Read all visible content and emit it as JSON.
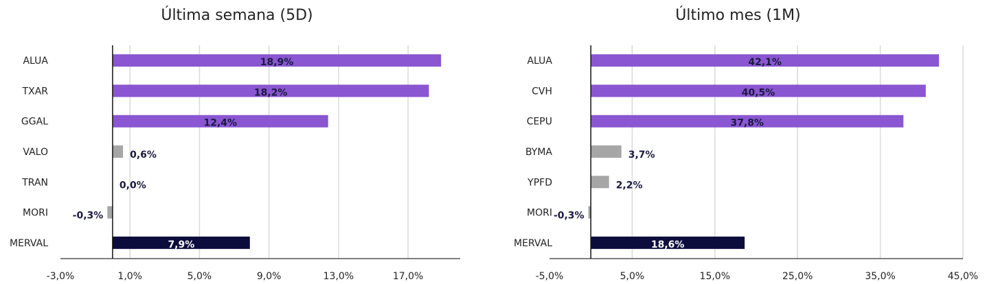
{
  "chart_data": [
    {
      "type": "bar",
      "orientation": "horizontal",
      "title": "Última semana (5D)",
      "categories": [
        "ALUA",
        "TXAR",
        "GGAL",
        "VALO",
        "TRAN",
        "MORI",
        "MERVAL"
      ],
      "values": [
        18.9,
        18.2,
        12.4,
        0.6,
        0.0,
        -0.3,
        7.9
      ],
      "value_labels": [
        "18,9%",
        "18,2%",
        "12,4%",
        "0,6%",
        "0,0%",
        "-0,3%",
        "7,9%"
      ],
      "bar_colors": [
        "#8a56d1",
        "#8a56d1",
        "#8a56d1",
        "#a6a6a6",
        "#a6a6a6",
        "#a6a6a6",
        "#0c0c3d"
      ],
      "xlim": [
        -3.0,
        20.0
      ],
      "x_ticks": [
        -3.0,
        1.0,
        5.0,
        9.0,
        13.0,
        17.0
      ],
      "x_tick_labels": [
        "-3,0%",
        "1,0%",
        "5,0%",
        "9,0%",
        "13,0%",
        "17,0%"
      ],
      "grid": true,
      "legend": "none"
    },
    {
      "type": "bar",
      "orientation": "horizontal",
      "title": "Último mes (1M)",
      "categories": [
        "ALUA",
        "CVH",
        "CEPU",
        "BYMA",
        "YPFD",
        "MORI",
        "MERVAL"
      ],
      "values": [
        42.1,
        40.5,
        37.8,
        3.7,
        2.2,
        -0.3,
        18.6
      ],
      "value_labels": [
        "42,1%",
        "40,5%",
        "37,8%",
        "3,7%",
        "2,2%",
        "-0,3%",
        "18,6%"
      ],
      "bar_colors": [
        "#8a56d1",
        "#8a56d1",
        "#8a56d1",
        "#a6a6a6",
        "#a6a6a6",
        "#a6a6a6",
        "#0c0c3d"
      ],
      "xlim": [
        -5.0,
        45.0
      ],
      "x_ticks": [
        -5.0,
        5.0,
        15.0,
        25.0,
        35.0,
        45.0
      ],
      "x_tick_labels": [
        "-5,0%",
        "5,0%",
        "15,0%",
        "25,0%",
        "35,0%",
        "45,0%"
      ],
      "grid": true,
      "legend": "none"
    }
  ],
  "colors": {
    "purple": "#8a56d1",
    "gray": "#a6a6a6",
    "navy": "#0c0c3d",
    "label_dark": "#1a1a40",
    "label_light": "#ffffff"
  }
}
